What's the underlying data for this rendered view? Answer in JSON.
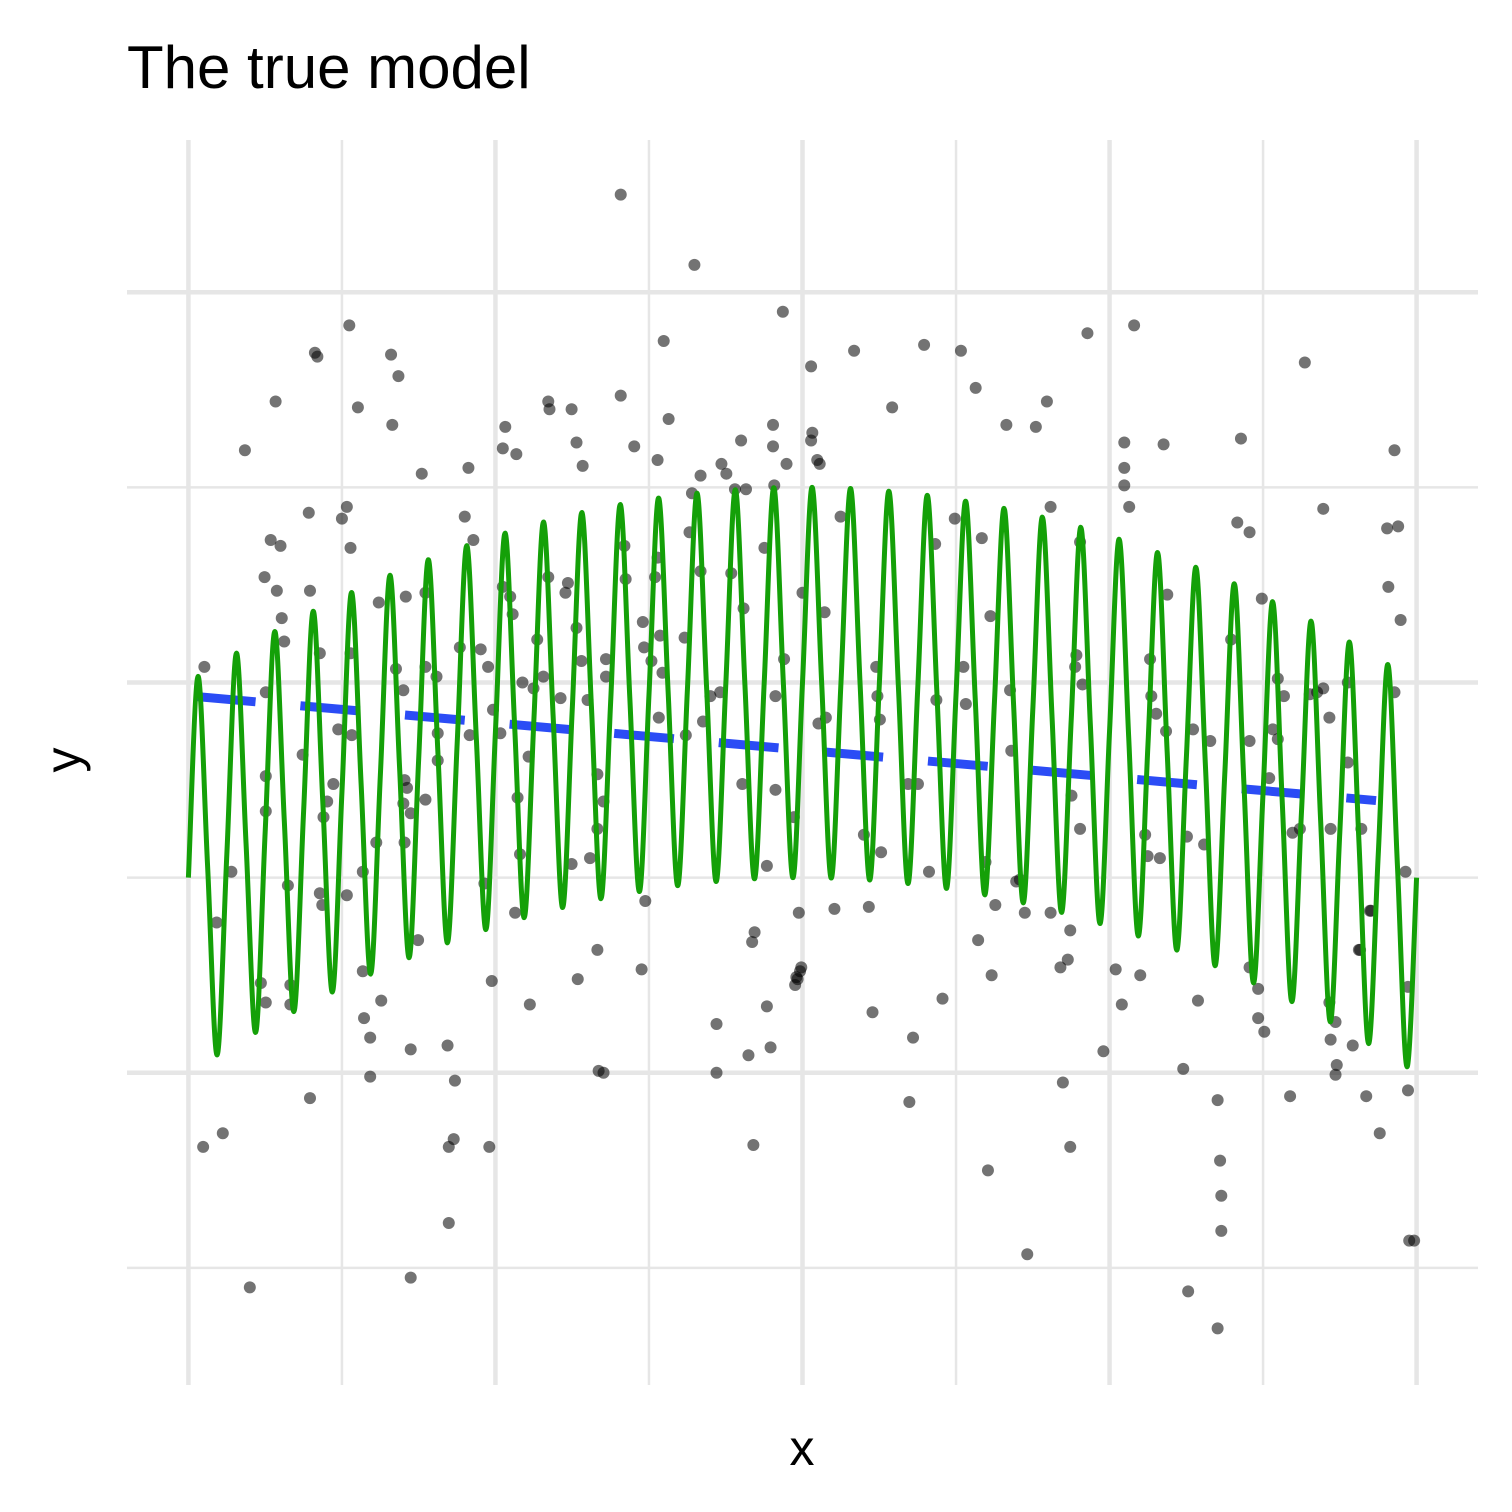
{
  "chart_data": {
    "type": "scatter",
    "title": "The true model",
    "x_label": "x",
    "y_label": "y",
    "xlim": [
      -0.05,
      1.05
    ],
    "ylim": [
      -3.6,
      2.78
    ],
    "xticks": [
      0,
      0.25,
      0.5,
      0.75,
      1
    ],
    "yticks": [
      -2,
      0,
      2
    ],
    "minor_xticks": [
      0.125,
      0.375,
      0.625,
      0.875
    ],
    "minor_yticks": [
      -3,
      -1,
      1
    ],
    "grid": true,
    "tick_labels": false,
    "series": [
      {
        "type": "scatter",
        "color": "#000000",
        "x": [
          0.013,
          0.012,
          0.028,
          0.023,
          0.035,
          0.046,
          0.05,
          0.059,
          0.063,
          0.063,
          0.063,
          0.063,
          0.062,
          0.067,
          0.071,
          0.072,
          0.075,
          0.076,
          0.078,
          0.081,
          0.083,
          0.083,
          0.093,
          0.098,
          0.099,
          0.099,
          0.103,
          0.105,
          0.107,
          0.107,
          0.109,
          0.11,
          0.113,
          0.118,
          0.122,
          0.125,
          0.129,
          0.131,
          0.132,
          0.132,
          0.133,
          0.129,
          0.138,
          0.142,
          0.142,
          0.143,
          0.148,
          0.148,
          0.153,
          0.155,
          0.157,
          0.165,
          0.166,
          0.171,
          0.169,
          0.175,
          0.176,
          0.176,
          0.175,
          0.178,
          0.181,
          0.177,
          0.181,
          0.181,
          0.187,
          0.19,
          0.193,
          0.193,
          0.193,
          0.202,
          0.203,
          0.203,
          0.211,
          0.212,
          0.212,
          0.216,
          0.217,
          0.221,
          0.225,
          0.228,
          0.229,
          0.232,
          0.238,
          0.241,
          0.244,
          0.245,
          0.247,
          0.248,
          0.254,
          0.258,
          0.256,
          0.267,
          0.256,
          0.262,
          0.264,
          0.266,
          0.268,
          0.27,
          0.272,
          0.278,
          0.277,
          0.281,
          0.284,
          0.289,
          0.293,
          0.294,
          0.293,
          0.303,
          0.307,
          0.309,
          0.312,
          0.316,
          0.321,
          0.316,
          0.32,
          0.317,
          0.312,
          0.325,
          0.327,
          0.333,
          0.333,
          0.333,
          0.334,
          0.338,
          0.338,
          0.34,
          0.34,
          0.352,
          0.356,
          0.355,
          0.363,
          0.369,
          0.37,
          0.371,
          0.372,
          0.377,
          0.38,
          0.382,
          0.382,
          0.384,
          0.383,
          0.387,
          0.391,
          0.386,
          0.404,
          0.405,
          0.408,
          0.41,
          0.412,
          0.417,
          0.417,
          0.419,
          0.425,
          0.43,
          0.43,
          0.434,
          0.433,
          0.438,
          0.442,
          0.445,
          0.45,
          0.452,
          0.454,
          0.451,
          0.459,
          0.461,
          0.46,
          0.456,
          0.469,
          0.471,
          0.471,
          0.474,
          0.476,
          0.476,
          0.477,
          0.478,
          0.478,
          0.484,
          0.485,
          0.487,
          0.493,
          0.494,
          0.495,
          0.496,
          0.498,
          0.499,
          0.497,
          0.5,
          0.507,
          0.508,
          0.507,
          0.512,
          0.514,
          0.513,
          0.518,
          0.519,
          0.526,
          0.531,
          0.542,
          0.55,
          0.554,
          0.56,
          0.561,
          0.563,
          0.557,
          0.564,
          0.573,
          0.586,
          0.587,
          0.59,
          0.594,
          0.599,
          0.603,
          0.608,
          0.609,
          0.614,
          0.624,
          0.629,
          0.631,
          0.633,
          0.641,
          0.643,
          0.646,
          0.649,
          0.653,
          0.654,
          0.651,
          0.657,
          0.666,
          0.67,
          0.669,
          0.674,
          0.677,
          0.681,
          0.683,
          0.69,
          0.699,
          0.702,
          0.702,
          0.71,
          0.712,
          0.716,
          0.718,
          0.718,
          0.719,
          0.722,
          0.723,
          0.726,
          0.726,
          0.728,
          0.732,
          0.745,
          0.755,
          0.76,
          0.762,
          0.762,
          0.762,
          0.766,
          0.77,
          0.775,
          0.779,
          0.781,
          0.783,
          0.784,
          0.788,
          0.791,
          0.794,
          0.797,
          0.796,
          0.81,
          0.813,
          0.814,
          0.818,
          0.822,
          0.827,
          0.832,
          0.838,
          0.838,
          0.84,
          0.841,
          0.841,
          0.849,
          0.854,
          0.857,
          0.864,
          0.864,
          0.864,
          0.871,
          0.874,
          0.871,
          0.876,
          0.883,
          0.88,
          0.887,
          0.887,
          0.892,
          0.897,
          0.899,
          0.905,
          0.909,
          0.913,
          0.919,
          0.924,
          0.924,
          0.929,
          0.929,
          0.93,
          0.935,
          0.934,
          0.93,
          0.934,
          0.944,
          0.948,
          0.944,
          0.953,
          0.954,
          0.955,
          0.959,
          0.963,
          0.97,
          0.976,
          0.982,
          0.977,
          0.982,
          0.987,
          0.985,
          0.991,
          0.993,
          0.993,
          0.994,
          0.998,
          0.962,
          0.352
        ],
        "y": [
          0.08,
          -2.38,
          -2.31,
          -1.23,
          -0.97,
          1.19,
          -3.1,
          -1.54,
          -1.64,
          -0.66,
          -0.48,
          -0.05,
          0.54,
          0.73,
          1.44,
          0.47,
          0.7,
          0.33,
          0.21,
          -1.04,
          -1.55,
          -1.65,
          -0.37,
          0.87,
          0.47,
          -2.13,
          1.69,
          1.67,
          0.15,
          -1.08,
          -1.14,
          -0.69,
          -0.61,
          -0.52,
          -0.24,
          0.84,
          0.9,
          1.83,
          0.15,
          0.69,
          -0.27,
          -1.09,
          1.41,
          -0.97,
          -1.48,
          -1.72,
          -1.82,
          -2.02,
          -0.82,
          0.41,
          -1.63,
          1.68,
          1.32,
          1.57,
          0.07,
          -0.04,
          -0.5,
          -0.82,
          -0.62,
          -0.54,
          -0.67,
          0.44,
          -1.88,
          -3.05,
          -1.32,
          1.07,
          0.46,
          0.08,
          -0.6,
          0.03,
          -0.4,
          -0.26,
          -1.86,
          -2.77,
          -2.38,
          -2.34,
          -2.04,
          0.18,
          0.85,
          1.1,
          -0.27,
          0.73,
          0.17,
          -1.03,
          0.08,
          -2.38,
          -1.53,
          -0.14,
          -0.26,
          1.31,
          1.2,
          1.17,
          0.49,
          0.44,
          0.35,
          -1.18,
          -0.59,
          -0.88,
          0,
          -1.65,
          -0.38,
          -0.03,
          0.22,
          0.03,
          1.44,
          1.4,
          0.54,
          -0.08,
          0.46,
          0.51,
          1.4,
          1.23,
          1.11,
          0.28,
          0.11,
          -1.52,
          -0.93,
          -0.09,
          -0.9,
          -0.47,
          -0.75,
          -1.37,
          -1.99,
          -2.0,
          -0.61,
          0.03,
          0.12,
          1.47,
          0.53,
          0.7,
          1.21,
          -1.47,
          0.31,
          0.18,
          -1.12,
          0.11,
          0.54,
          1.14,
          0.64,
          0.24,
          -0.18,
          1.75,
          1.35,
          0.05,
          0.23,
          -0.27,
          0.77,
          0.97,
          2.14,
          1.06,
          0.57,
          -0.2,
          -0.07,
          -1.75,
          -2.0,
          1.12,
          -0.05,
          1.07,
          0.56,
          0.99,
          1.24,
          0.38,
          0.99,
          -0.52,
          -1.33,
          -1.28,
          -2.37,
          -1.91,
          0.69,
          -0.94,
          -1.66,
          -1.87,
          1.32,
          1.21,
          1.01,
          -0.07,
          -0.55,
          1.9,
          0.12,
          1.12,
          -0.69,
          -1.55,
          -1.51,
          -1.52,
          -1.48,
          -1.46,
          -1.18,
          0.46,
          1.62,
          1.28,
          1.24,
          1.14,
          1.12,
          -0.21,
          0.36,
          -0.18,
          -1.16,
          0.85,
          1.7,
          -0.78,
          -1.15,
          0.08,
          -0.07,
          -0.19,
          -1.69,
          -0.87,
          1.41,
          -0.52,
          -2.15,
          -1.82,
          -0.52,
          1.73,
          -0.97,
          0.71,
          -0.09,
          -1.62,
          0.84,
          1.7,
          0.08,
          -0.11,
          1.51,
          -1.32,
          0.74,
          -0.92,
          0.34,
          -1.5,
          -2.5,
          -1.14,
          1.32,
          -0.35,
          -0.04,
          -1.02,
          -1.01,
          -1.18,
          -2.93,
          1.31,
          1.44,
          0.9,
          -1.18,
          -1.46,
          -2.05,
          -1.42,
          -1.27,
          -2.38,
          -0.58,
          0.08,
          0.14,
          0.72,
          -0.75,
          -0.01,
          1.79,
          -1.89,
          -1.47,
          -1.65,
          1.01,
          1.1,
          1.23,
          0.9,
          1.83,
          -1.5,
          -0.78,
          -0.89,
          0.12,
          -0.07,
          -0.16,
          -0.9,
          1.22,
          0.45,
          -0.25,
          -1.98,
          -0.79,
          -3.12,
          -0.24,
          -1.63,
          -0.83,
          -0.3,
          -2.14,
          -3.31,
          -2.45,
          -2.63,
          -2.81,
          0.22,
          0.82,
          1.25,
          -1.46,
          0.77,
          -0.3,
          -1.72,
          0.43,
          -1.57,
          -1.79,
          -0.24,
          -0.49,
          0.02,
          -0.29,
          -0.07,
          -2.12,
          -0.77,
          -0.75,
          1.64,
          -0.06,
          -0.05,
          -0.03,
          0.89,
          -0.18,
          -1.64,
          -0.75,
          -1.96,
          -2.01,
          -1.83,
          -1.74,
          0,
          -1.86,
          -0.41,
          -1.37,
          -1.37,
          -0.75,
          -2.12,
          -1.17,
          -2.31,
          0.79,
          1.19,
          0.49,
          -0.05,
          0.32,
          0.8,
          -0.97,
          -2.09,
          -1.56,
          -2.86,
          -2.86,
          -1.17,
          2.5
        ]
      },
      {
        "type": "line",
        "color": "#2b4cf5",
        "linestyle": "dashed",
        "x": [
          0.006,
          0.967
        ],
        "y": [
          -0.072,
          -0.605
        ]
      },
      {
        "type": "line",
        "color": "#14a008",
        "linestyle": "solid",
        "x": [
          0,
          0.0078,
          0.0156,
          0.0234,
          0.0313,
          0.0391,
          0.0469,
          0.0547,
          0.0625,
          0.0703,
          0.0781,
          0.0859,
          0.0938,
          0.1016,
          0.1094,
          0.1172,
          0.125,
          0.1328,
          0.1406,
          0.1484,
          0.1563,
          0.1641,
          0.1719,
          0.1797,
          0.1875,
          0.1953,
          0.2031,
          0.2109,
          0.2188,
          0.2266,
          0.2344,
          0.2422,
          0.25,
          0.2578,
          0.2656,
          0.2734,
          0.2813,
          0.2891,
          0.2969,
          0.3047,
          0.3125,
          0.3203,
          0.3281,
          0.3359,
          0.3438,
          0.3516,
          0.3594,
          0.3672,
          0.375,
          0.3828,
          0.3906,
          0.3984,
          0.4063,
          0.4141,
          0.4219,
          0.4297,
          0.4375,
          0.4453,
          0.4531,
          0.4609,
          0.4688,
          0.4766,
          0.4844,
          0.4922,
          0.5,
          0.5078,
          0.5156,
          0.5234,
          0.5313,
          0.5391,
          0.5469,
          0.5547,
          0.5625,
          0.5703,
          0.5781,
          0.5859,
          0.5938,
          0.6016,
          0.6094,
          0.6172,
          0.625,
          0.6328,
          0.6406,
          0.6484,
          0.6563,
          0.6641,
          0.6719,
          0.6797,
          0.6875,
          0.6953,
          0.7031,
          0.7109,
          0.7188,
          0.7266,
          0.7344,
          0.7422,
          0.75,
          0.7578,
          0.7656,
          0.7734,
          0.7813,
          0.7891,
          0.7969,
          0.8047,
          0.8125,
          0.8203,
          0.8281,
          0.8359,
          0.8438,
          0.8516,
          0.8594,
          0.8672,
          0.875,
          0.8828,
          0.8906,
          0.8984,
          0.9063,
          0.9141,
          0.9219,
          0.9297,
          0.9375,
          0.9453,
          0.9531,
          0.9609,
          0.9688,
          0.9766,
          0.9844,
          0.9922,
          1
        ],
        "y": [
          -1,
          0.031,
          -0.938,
          -1.908,
          -0.879,
          0.15,
          -0.821,
          -1.793,
          -0.766,
          0.261,
          -0.712,
          -1.686,
          -0.66,
          0.365,
          -0.61,
          -1.586,
          -0.563,
          0.461,
          -0.517,
          -1.494,
          -0.473,
          0.549,
          -0.431,
          -1.41,
          -0.391,
          0.629,
          -0.353,
          -1.334,
          -0.316,
          0.701,
          -0.282,
          -1.266,
          -0.25,
          0.765,
          -0.22,
          -1.205,
          -0.191,
          0.822,
          -0.165,
          -1.153,
          -0.141,
          0.871,
          -0.118,
          -1.108,
          -0.098,
          0.912,
          -0.079,
          -1.071,
          -0.063,
          0.945,
          -0.048,
          -1.041,
          -0.035,
          0.97,
          -0.024,
          -1.02,
          -0.016,
          0.988,
          -0.009,
          -1.006,
          -0.004,
          0.998,
          -0.001,
          -1,
          0,
          1,
          -0.001,
          -1.002,
          -0.004,
          0.994,
          -0.009,
          -1.012,
          -0.016,
          0.98,
          -0.024,
          -1.03,
          -0.035,
          0.959,
          -0.048,
          -1.055,
          -0.063,
          0.929,
          -0.079,
          -1.088,
          -0.098,
          0.892,
          -0.118,
          -1.129,
          -0.141,
          0.847,
          -0.165,
          -1.178,
          -0.191,
          0.795,
          -0.22,
          -1.235,
          -0.25,
          0.734,
          -0.282,
          -1.299,
          -0.316,
          0.666,
          -0.353,
          -1.371,
          -0.391,
          0.59,
          -0.431,
          -1.451,
          -0.473,
          0.506,
          -0.517,
          -1.539,
          -0.563,
          0.414,
          -0.61,
          -1.635,
          -0.66,
          0.314,
          -0.712,
          -1.739,
          -0.766,
          0.207,
          -0.821,
          -1.85,
          -0.879,
          0.092,
          -0.938,
          -1.969,
          -1
        ]
      }
    ]
  }
}
